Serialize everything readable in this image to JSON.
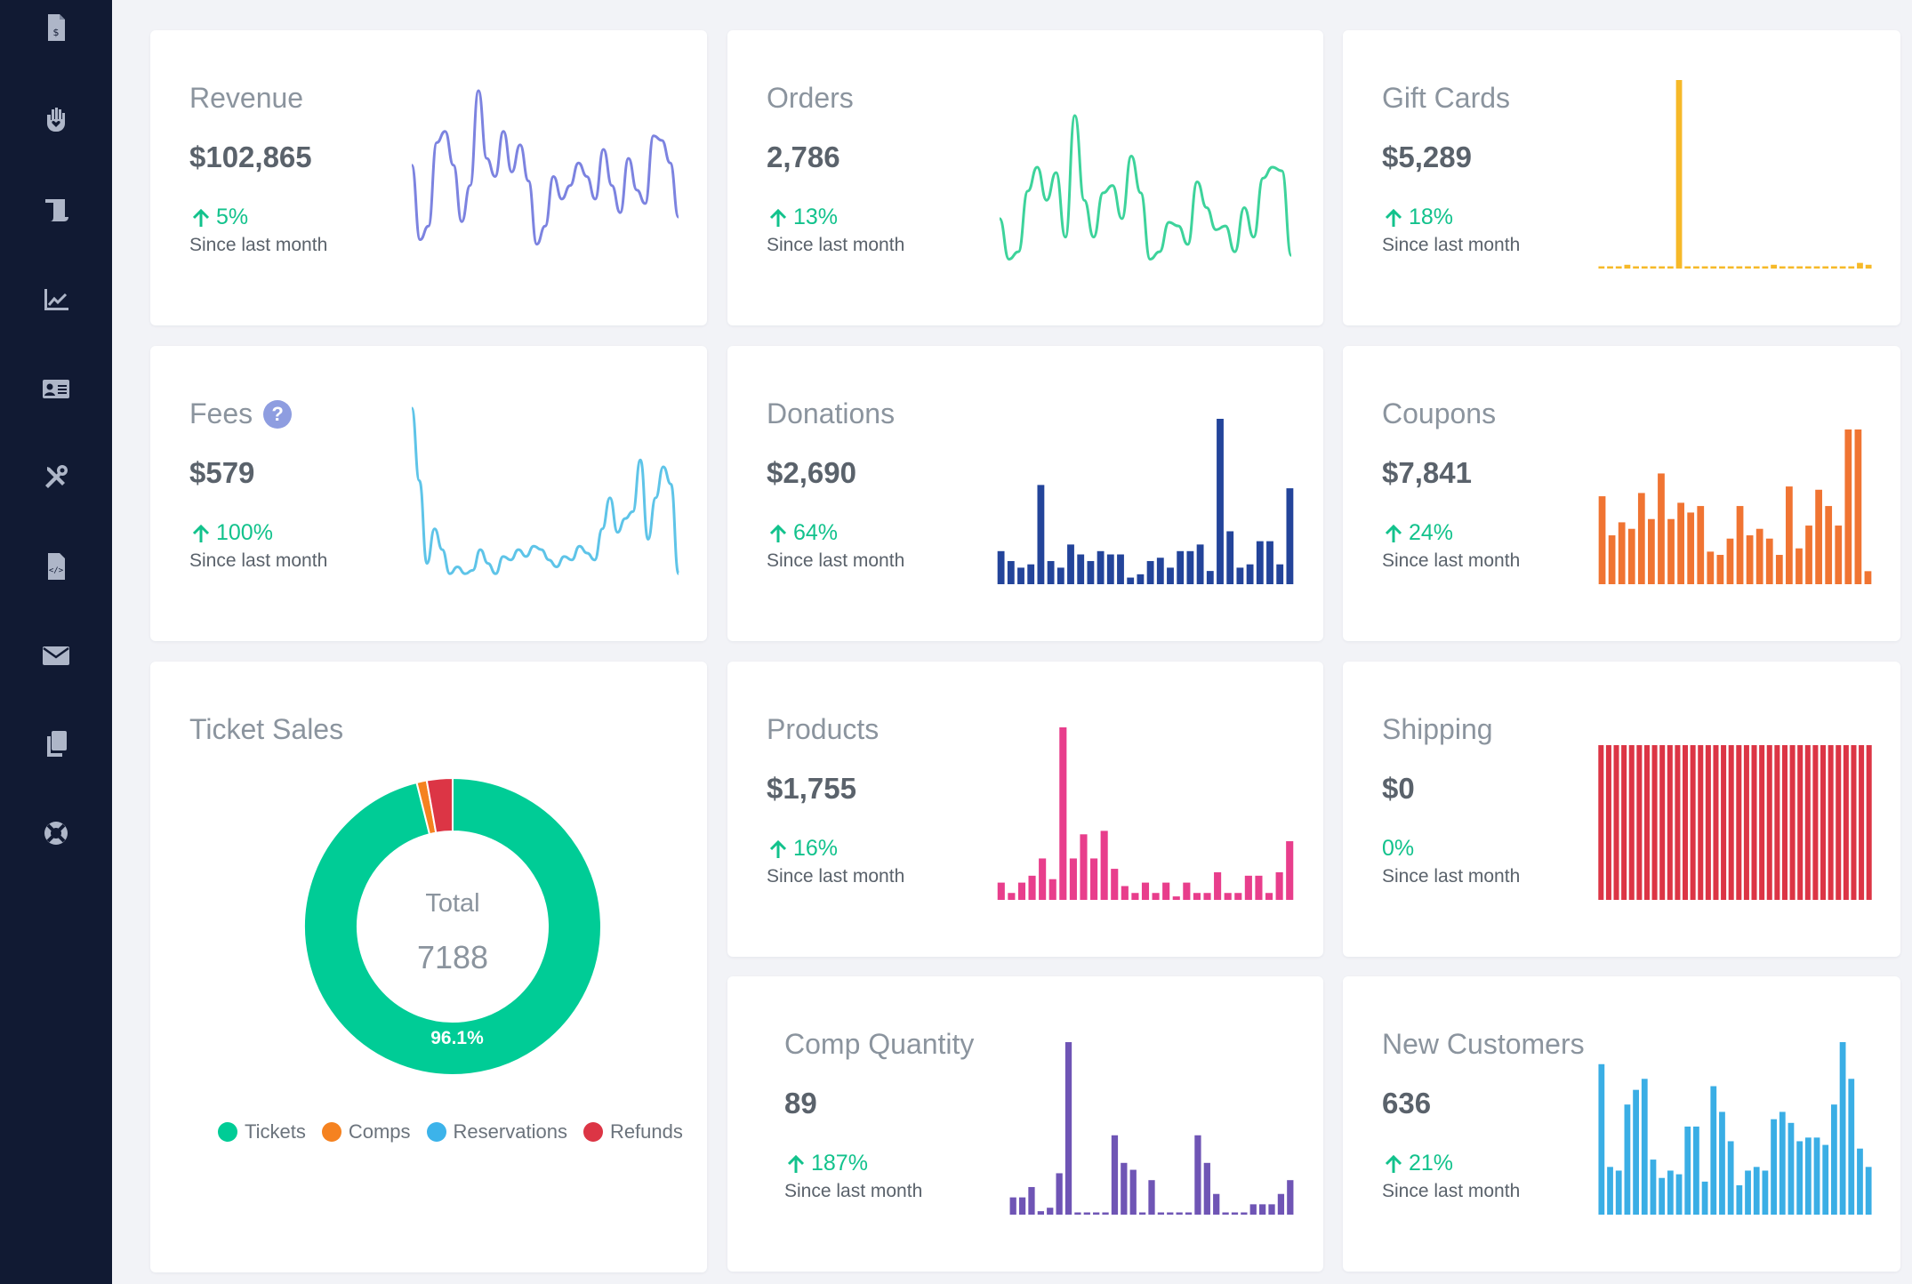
{
  "sidebar": {
    "items": [
      {
        "icon": "invoice-icon"
      },
      {
        "icon": "donation-hand-icon"
      },
      {
        "icon": "scroll-icon"
      },
      {
        "icon": "line-chart-icon"
      },
      {
        "icon": "id-card-icon"
      },
      {
        "icon": "tools-icon"
      },
      {
        "icon": "code-file-icon"
      },
      {
        "icon": "envelope-icon"
      },
      {
        "icon": "copy-icon"
      },
      {
        "icon": "lifebuoy-icon"
      }
    ]
  },
  "cards": {
    "revenue": {
      "title": "Revenue",
      "value": "$102,865",
      "change": "5%",
      "since": "Since last month",
      "color": "#7c83e0"
    },
    "orders": {
      "title": "Orders",
      "value": "2,786",
      "change": "13%",
      "since": "Since last month",
      "color": "#3dd39b"
    },
    "giftcards": {
      "title": "Gift Cards",
      "value": "$5,289",
      "change": "18%",
      "since": "Since last month",
      "color": "#f6b928"
    },
    "fees": {
      "title": "Fees",
      "help": "?",
      "value": "$579",
      "change": "100%",
      "since": "Since last month",
      "color": "#5ec4e8"
    },
    "donations": {
      "title": "Donations",
      "value": "$2,690",
      "change": "64%",
      "since": "Since last month",
      "color": "#23449a"
    },
    "coupons": {
      "title": "Coupons",
      "value": "$7,841",
      "change": "24%",
      "since": "Since last month",
      "color": "#f07432"
    },
    "products": {
      "title": "Products",
      "value": "$1,755",
      "change": "16%",
      "since": "Since last month",
      "color": "#e83e8c"
    },
    "shipping": {
      "title": "Shipping",
      "value": "$0",
      "change": "0%",
      "since": "Since last month",
      "color": "#dc3545"
    },
    "compqty": {
      "title": "Comp Quantity",
      "value": "89",
      "change": "187%",
      "since": "Since last month",
      "color": "#6f55b5"
    },
    "newcust": {
      "title": "New Customers",
      "value": "636",
      "change": "21%",
      "since": "Since last month",
      "color": "#3aaee5"
    }
  },
  "ticket_sales": {
    "title": "Ticket Sales",
    "total_label": "Total",
    "total_value": "7188",
    "slice_label": "96.1%",
    "legend": [
      {
        "label": "Tickets",
        "color": "#00cc96"
      },
      {
        "label": "Comps",
        "color": "#f58220"
      },
      {
        "label": "Reservations",
        "color": "#3cb3ea"
      },
      {
        "label": "Refunds",
        "color": "#dc3545"
      }
    ]
  },
  "chart_data": [
    {
      "id": "revenue",
      "type": "line",
      "values": [
        45,
        12,
        18,
        55,
        60,
        45,
        20,
        36,
        78,
        48,
        40,
        60,
        42,
        54,
        38,
        10,
        18,
        40,
        30,
        36,
        46,
        40,
        30,
        52,
        36,
        24,
        48,
        34,
        28,
        58,
        56,
        46,
        22
      ]
    },
    {
      "id": "orders",
      "type": "line",
      "values": [
        30,
        8,
        12,
        45,
        58,
        40,
        55,
        20,
        86,
        40,
        20,
        44,
        48,
        30,
        64,
        44,
        8,
        12,
        28,
        26,
        16,
        50,
        36,
        24,
        26,
        12,
        36,
        20,
        52,
        58,
        56,
        10
      ]
    },
    {
      "id": "giftcards",
      "type": "bar",
      "values": [
        1,
        1,
        1,
        2,
        1,
        1,
        1,
        1,
        1,
        100,
        1,
        1,
        1,
        1,
        1,
        1,
        1,
        1,
        1,
        1,
        2,
        1,
        1,
        1,
        1,
        1,
        1,
        1,
        1,
        1,
        3,
        2
      ]
    },
    {
      "id": "fees",
      "type": "line",
      "values": [
        100,
        58,
        10,
        30,
        18,
        4,
        8,
        4,
        6,
        18,
        10,
        4,
        14,
        12,
        18,
        14,
        20,
        18,
        12,
        8,
        14,
        12,
        20,
        16,
        12,
        30,
        48,
        28,
        36,
        40,
        70,
        24,
        48,
        66,
        56,
        4
      ]
    },
    {
      "id": "donations",
      "type": "bar",
      "values": [
        20,
        14,
        10,
        12,
        60,
        14,
        10,
        24,
        18,
        14,
        20,
        18,
        18,
        4,
        6,
        14,
        16,
        10,
        20,
        20,
        24,
        8,
        100,
        32,
        10,
        12,
        26,
        26,
        12,
        58
      ]
    },
    {
      "id": "coupons",
      "type": "bar",
      "values": [
        54,
        30,
        38,
        34,
        56,
        40,
        68,
        40,
        50,
        44,
        48,
        20,
        18,
        28,
        48,
        30,
        34,
        28,
        18,
        60,
        22,
        36,
        58,
        48,
        36,
        95,
        95,
        8
      ]
    },
    {
      "id": "products",
      "type": "bar",
      "values": [
        10,
        4,
        10,
        14,
        24,
        12,
        100,
        24,
        38,
        24,
        40,
        18,
        8,
        4,
        10,
        4,
        10,
        2,
        10,
        4,
        4,
        16,
        4,
        4,
        14,
        14,
        4,
        16,
        34
      ]
    },
    {
      "id": "shipping",
      "type": "bar",
      "values": [
        1,
        1,
        1,
        1,
        1,
        1,
        1,
        1,
        1,
        1,
        1,
        1,
        1,
        1,
        1,
        1,
        1,
        1,
        1,
        1,
        1,
        1,
        1,
        1,
        1,
        1,
        1,
        1,
        1,
        1,
        1,
        1,
        1,
        1,
        1,
        1
      ]
    },
    {
      "id": "compqty",
      "type": "bar",
      "values": [
        10,
        10,
        16,
        2,
        4,
        24,
        100,
        1,
        1,
        1,
        1,
        46,
        30,
        26,
        1,
        20,
        1,
        1,
        1,
        1,
        46,
        30,
        12,
        1,
        1,
        1,
        6,
        6,
        6,
        12,
        20
      ]
    },
    {
      "id": "newcust",
      "type": "bar",
      "values": [
        82,
        26,
        24,
        60,
        68,
        74,
        30,
        20,
        24,
        22,
        48,
        48,
        18,
        70,
        56,
        40,
        16,
        24,
        26,
        24,
        52,
        56,
        50,
        40,
        42,
        42,
        38,
        60,
        94,
        74,
        36,
        26
      ]
    },
    {
      "id": "ticket_sales",
      "type": "pie",
      "categories": [
        "Tickets",
        "Comps",
        "Reservations",
        "Refunds"
      ],
      "values": [
        96.1,
        1.1,
        0,
        2.8
      ]
    }
  ]
}
